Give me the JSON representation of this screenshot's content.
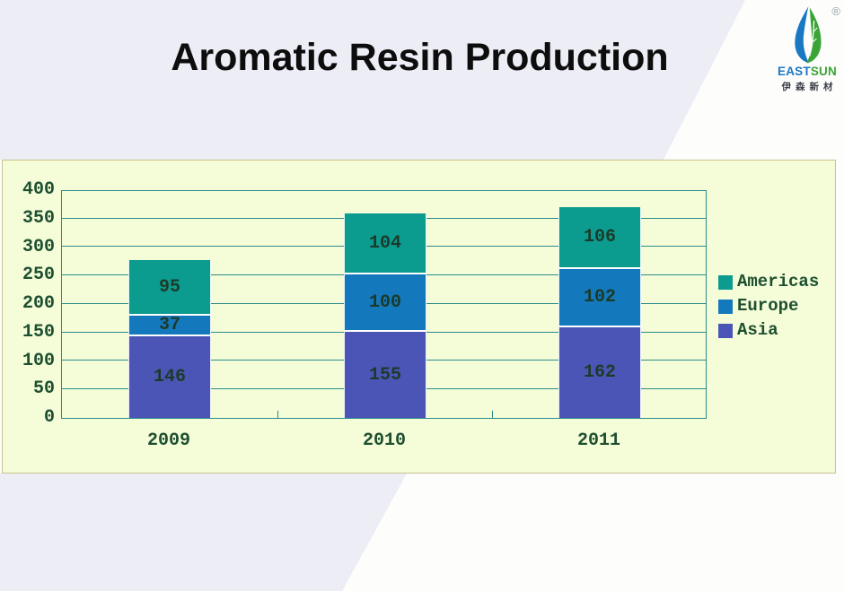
{
  "slide": {
    "title": "Aromatic Resin Production"
  },
  "logo": {
    "brand_east": "EAST",
    "brand_sun": "SUN",
    "registered_mark": "®",
    "chinese_name": "伊森新材",
    "colors": {
      "east": "#1b78c0",
      "sun": "#3aa437",
      "drop_blue": "#1878c2",
      "drop_green": "#3aa437"
    }
  },
  "theme": {
    "band_lavender": "#ecedf5",
    "background_white": "#fdfdfc",
    "panel_background": "#f4fcd8",
    "panel_border": "#c8c28f",
    "axis_teal": "#2c8c8c",
    "chart_text_green": "#1e4f30"
  },
  "chart_data": {
    "type": "bar",
    "stacked": true,
    "title": "Aromatic Resin Production",
    "xlabel": "",
    "ylabel": "",
    "categories": [
      "2009",
      "2010",
      "2011"
    ],
    "series": [
      {
        "name": "Asia",
        "color": "#4a55b5",
        "values": [
          146,
          155,
          162
        ]
      },
      {
        "name": "Europe",
        "color": "#1478bc",
        "values": [
          37,
          100,
          102
        ]
      },
      {
        "name": "Americas",
        "color": "#0b9b8f",
        "values": [
          95,
          104,
          106
        ]
      }
    ],
    "totals": [
      278,
      359,
      370
    ],
    "ylim": [
      0,
      400
    ],
    "ytick_step": 50,
    "yticks": [
      0,
      50,
      100,
      150,
      200,
      250,
      300,
      350,
      400
    ],
    "grid": true,
    "show_values": true,
    "legend_position": "right",
    "legend_order_top_to_bottom": [
      "Americas",
      "Europe",
      "Asia"
    ]
  }
}
